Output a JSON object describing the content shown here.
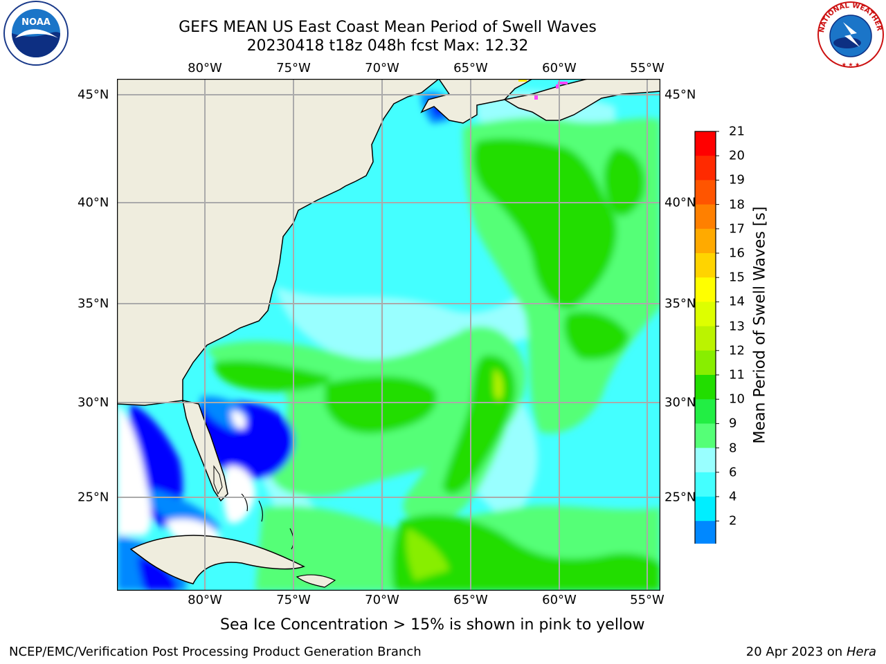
{
  "header": {
    "title_line1": "GEFS MEAN US East Coast Mean Period of Swell Waves",
    "title_line2": "20230418 t18z 048h fcst   Max: 12.32"
  },
  "map": {
    "longitude_labels": [
      "80°W",
      "75°W",
      "70°W",
      "65°W",
      "60°W",
      "55°W"
    ],
    "latitude_labels": [
      "45°N",
      "40°N",
      "35°N",
      "30°N",
      "25°N"
    ]
  },
  "colorbar": {
    "label": "Mean Period of Swell Waves [s]",
    "ticks": [
      "21",
      "20",
      "19",
      "18",
      "17",
      "16",
      "15",
      "14",
      "13",
      "12",
      "11",
      "10",
      "9",
      "8",
      "6",
      "4",
      "2"
    ],
    "colors": [
      "#ff0000",
      "#ff2a00",
      "#ff5500",
      "#ff8000",
      "#ffaa00",
      "#ffd400",
      "#ffff00",
      "#ddff00",
      "#bbf300",
      "#88ee00",
      "#22dd00",
      "#22ee44",
      "#55ff77",
      "#99ffff",
      "#44ffff",
      "#00eeff",
      "#0088ff"
    ],
    "under_color": "#0000ff"
  },
  "footer": {
    "note": "Sea Ice Concentration > 15% is shown in pink to yellow",
    "credit_left": "NCEP/EMC/Verification Post Processing Product Generation Branch",
    "credit_date": "20 Apr 2023 on ",
    "credit_host": "Hera"
  },
  "logos": {
    "noaa": "NOAA",
    "nws": "NATIONAL WEATHER SERVICE"
  }
}
